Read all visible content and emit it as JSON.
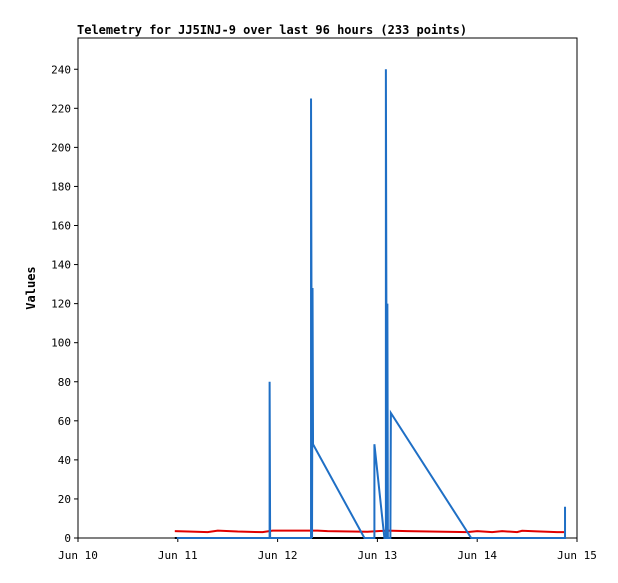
{
  "chart_data": {
    "type": "line",
    "title": "Telemetry for JJ5INJ-9 over last 96 hours (233 points)",
    "y_label": "Values",
    "xlim": [
      10,
      15
    ],
    "ylim": [
      0,
      256
    ],
    "xticks": [
      {
        "value": 10,
        "label": "Jun 10"
      },
      {
        "value": 11,
        "label": "Jun 11"
      },
      {
        "value": 12,
        "label": "Jun 12"
      },
      {
        "value": 13,
        "label": "Jun 13"
      },
      {
        "value": 14,
        "label": "Jun 14"
      },
      {
        "value": 15,
        "label": "Jun 15"
      }
    ],
    "yticks": [
      0,
      20,
      40,
      60,
      80,
      100,
      120,
      140,
      160,
      180,
      200,
      220,
      240
    ],
    "series": [
      {
        "color": "#e00000",
        "x": [
          10.97,
          11.1,
          11.3,
          11.4,
          11.6,
          11.85,
          11.95,
          12.4,
          12.5,
          12.9,
          13.1,
          13.3,
          13.9,
          14.0,
          14.15,
          14.25,
          14.4,
          14.45,
          14.6,
          14.8,
          14.87
        ],
        "values": [
          3.5,
          3.3,
          3,
          3.8,
          3.3,
          3,
          3.8,
          3.8,
          3.5,
          3.2,
          3.8,
          3.5,
          3,
          3.5,
          3,
          3.5,
          3,
          3.7,
          3.4,
          3,
          3
        ]
      },
      {
        "color": "#000000",
        "x": [
          10.97,
          14.87
        ],
        "values": [
          0,
          0
        ]
      },
      {
        "color": "#1f6fc5",
        "x": [
          10.99,
          11.92,
          11.92,
          11.925,
          12.335,
          12.335,
          12.345,
          12.35,
          12.355,
          12.87,
          12.97,
          12.97,
          13.07,
          13.085,
          13.085,
          13.095,
          13.1,
          13.105,
          13.13,
          13.135,
          13.94,
          14.88,
          14.88
        ],
        "values": [
          0,
          0,
          80,
          0,
          0,
          225,
          0,
          128,
          48,
          0,
          0,
          48,
          0,
          0,
          240,
          0,
          120,
          0,
          0,
          64,
          0,
          0,
          16
        ]
      }
    ]
  }
}
